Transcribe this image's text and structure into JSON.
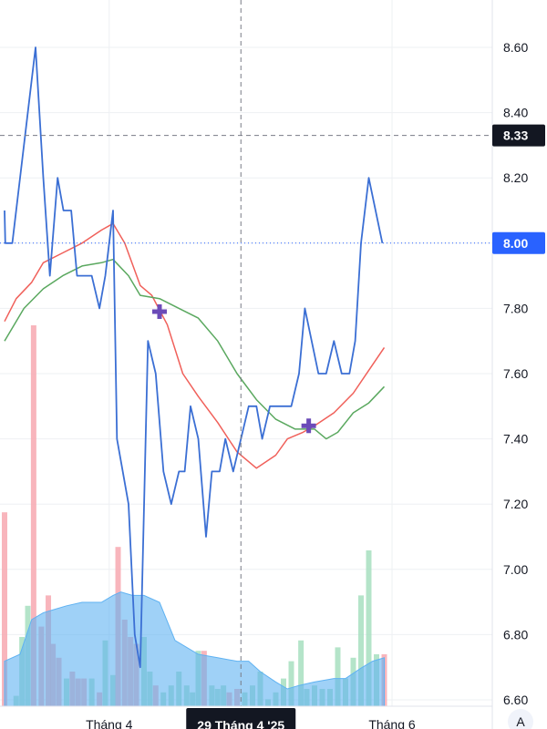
{
  "chart_data": {
    "type": "line",
    "y_axis": {
      "position": "right",
      "range": [
        6.6,
        8.66
      ],
      "ticks": [
        "8.60",
        "8.40",
        "8.20",
        "8.00",
        "7.80",
        "7.60",
        "7.40",
        "7.20",
        "7.00",
        "6.80",
        "6.60"
      ]
    },
    "x_axis": {
      "ticks": [
        {
          "label": "Tháng 4",
          "t": 0.27
        },
        {
          "label": "Tháng 6",
          "t": 1.0
        }
      ],
      "crosshair_label": "29 Tháng 4 '25",
      "crosshair_t": 0.61
    },
    "price_labels": [
      {
        "value": "8.33",
        "style": "dark"
      },
      {
        "value": "8.00",
        "style": "blue"
      }
    ],
    "crosshair_price": 8.33,
    "last_price": 8.0,
    "corner_button": "A",
    "series": [
      {
        "kind": "price",
        "color": "#3b6fd4",
        "points": [
          [
            0,
            8.1
          ],
          [
            0.002,
            8.0
          ],
          [
            0.02,
            8.0
          ],
          [
            0.04,
            8.2
          ],
          [
            0.08,
            8.6
          ],
          [
            0.1,
            8.2
          ],
          [
            0.117,
            7.9
          ],
          [
            0.137,
            8.2
          ],
          [
            0.152,
            8.1
          ],
          [
            0.172,
            8.1
          ],
          [
            0.187,
            7.9
          ],
          [
            0.225,
            7.9
          ],
          [
            0.245,
            7.8
          ],
          [
            0.26,
            7.9
          ],
          [
            0.28,
            8.1
          ],
          [
            0.29,
            7.4
          ],
          [
            0.32,
            7.2
          ],
          [
            0.336,
            6.8
          ],
          [
            0.35,
            6.7
          ],
          [
            0.37,
            7.7
          ],
          [
            0.39,
            7.6
          ],
          [
            0.41,
            7.3
          ],
          [
            0.43,
            7.2
          ],
          [
            0.45,
            7.3
          ],
          [
            0.465,
            7.3
          ],
          [
            0.48,
            7.5
          ],
          [
            0.5,
            7.4
          ],
          [
            0.52,
            7.1
          ],
          [
            0.535,
            7.3
          ],
          [
            0.555,
            7.3
          ],
          [
            0.57,
            7.4
          ],
          [
            0.59,
            7.3
          ],
          [
            0.61,
            7.4
          ],
          [
            0.63,
            7.5
          ],
          [
            0.65,
            7.5
          ],
          [
            0.665,
            7.4
          ],
          [
            0.685,
            7.5
          ],
          [
            0.7,
            7.5
          ],
          [
            0.74,
            7.5
          ],
          [
            0.76,
            7.6
          ],
          [
            0.775,
            7.8
          ],
          [
            0.81,
            7.6
          ],
          [
            0.83,
            7.6
          ],
          [
            0.85,
            7.7
          ],
          [
            0.87,
            7.6
          ],
          [
            0.89,
            7.6
          ],
          [
            0.905,
            7.7
          ],
          [
            0.92,
            8.0
          ],
          [
            0.94,
            8.2
          ],
          [
            0.975,
            8.0
          ]
        ]
      },
      {
        "kind": "ma",
        "color": "#f0605a",
        "points": [
          [
            0,
            7.76
          ],
          [
            0.03,
            7.83
          ],
          [
            0.07,
            7.88
          ],
          [
            0.1,
            7.94
          ],
          [
            0.15,
            7.97
          ],
          [
            0.2,
            8.0
          ],
          [
            0.25,
            8.04
          ],
          [
            0.28,
            8.06
          ],
          [
            0.31,
            8.0
          ],
          [
            0.35,
            7.87
          ],
          [
            0.38,
            7.84
          ],
          [
            0.42,
            7.75
          ],
          [
            0.46,
            7.6
          ],
          [
            0.5,
            7.53
          ],
          [
            0.55,
            7.45
          ],
          [
            0.6,
            7.36
          ],
          [
            0.65,
            7.31
          ],
          [
            0.7,
            7.35
          ],
          [
            0.73,
            7.4
          ],
          [
            0.77,
            7.42
          ],
          [
            0.8,
            7.44
          ],
          [
            0.85,
            7.48
          ],
          [
            0.9,
            7.54
          ],
          [
            0.94,
            7.61
          ],
          [
            0.98,
            7.68
          ]
        ]
      },
      {
        "kind": "ma",
        "color": "#5aa85f",
        "points": [
          [
            0,
            7.7
          ],
          [
            0.05,
            7.8
          ],
          [
            0.1,
            7.86
          ],
          [
            0.15,
            7.9
          ],
          [
            0.2,
            7.93
          ],
          [
            0.25,
            7.94
          ],
          [
            0.28,
            7.95
          ],
          [
            0.32,
            7.9
          ],
          [
            0.35,
            7.84
          ],
          [
            0.4,
            7.83
          ],
          [
            0.45,
            7.8
          ],
          [
            0.5,
            7.77
          ],
          [
            0.55,
            7.7
          ],
          [
            0.6,
            7.6
          ],
          [
            0.65,
            7.52
          ],
          [
            0.7,
            7.46
          ],
          [
            0.75,
            7.43
          ],
          [
            0.8,
            7.43
          ],
          [
            0.83,
            7.4
          ],
          [
            0.86,
            7.42
          ],
          [
            0.9,
            7.48
          ],
          [
            0.94,
            7.51
          ],
          [
            0.98,
            7.56
          ]
        ]
      }
    ],
    "markers": [
      {
        "t": 0.4,
        "value": 7.79,
        "shape": "cross",
        "color": "#6b4bb8"
      },
      {
        "t": 0.785,
        "value": 7.44,
        "shape": "cross",
        "color": "#6b4bb8"
      }
    ],
    "volume": {
      "max": 100,
      "up_color": "#a7dfc0",
      "down_color": "#f7a8b0",
      "bars": [
        [
          0.0,
          56,
          "down"
        ],
        [
          0.03,
          3,
          "up"
        ],
        [
          0.045,
          20,
          "up"
        ],
        [
          0.06,
          29,
          "up"
        ],
        [
          0.075,
          110,
          "down"
        ],
        [
          0.095,
          23,
          "down"
        ],
        [
          0.113,
          32,
          "down"
        ],
        [
          0.125,
          18,
          "down"
        ],
        [
          0.14,
          14,
          "down"
        ],
        [
          0.16,
          8,
          "up"
        ],
        [
          0.175,
          10,
          "down"
        ],
        [
          0.19,
          8,
          "down"
        ],
        [
          0.205,
          8,
          "down"
        ],
        [
          0.225,
          8,
          "up"
        ],
        [
          0.245,
          4,
          "down"
        ],
        [
          0.26,
          19,
          "up"
        ],
        [
          0.28,
          9,
          "up"
        ],
        [
          0.293,
          46,
          "down"
        ],
        [
          0.31,
          25,
          "down"
        ],
        [
          0.325,
          20,
          "down"
        ],
        [
          0.34,
          18,
          "down"
        ],
        [
          0.36,
          20,
          "up"
        ],
        [
          0.375,
          10,
          "up"
        ],
        [
          0.39,
          6,
          "down"
        ],
        [
          0.41,
          4,
          "up"
        ],
        [
          0.43,
          6,
          "up"
        ],
        [
          0.45,
          10,
          "up"
        ],
        [
          0.47,
          6,
          "up"
        ],
        [
          0.485,
          4,
          "up"
        ],
        [
          0.5,
          16,
          "up"
        ],
        [
          0.515,
          16,
          "down"
        ],
        [
          0.535,
          6,
          "up"
        ],
        [
          0.55,
          5,
          "up"
        ],
        [
          0.565,
          6,
          "up"
        ],
        [
          0.58,
          4,
          "down"
        ],
        [
          0.6,
          5,
          "down"
        ],
        [
          0.62,
          4,
          "up"
        ],
        [
          0.64,
          6,
          "up"
        ],
        [
          0.66,
          10,
          "up"
        ],
        [
          0.68,
          2,
          "up"
        ],
        [
          0.7,
          4,
          "up"
        ],
        [
          0.72,
          8,
          "up"
        ],
        [
          0.74,
          13,
          "up"
        ],
        [
          0.765,
          19,
          "up"
        ],
        [
          0.78,
          5,
          "up"
        ],
        [
          0.8,
          6,
          "up"
        ],
        [
          0.82,
          5,
          "up"
        ],
        [
          0.84,
          5,
          "up"
        ],
        [
          0.86,
          17,
          "up"
        ],
        [
          0.88,
          8,
          "up"
        ],
        [
          0.9,
          14,
          "up"
        ],
        [
          0.92,
          32,
          "up"
        ],
        [
          0.94,
          45,
          "up"
        ],
        [
          0.96,
          15,
          "up"
        ],
        [
          0.98,
          15,
          "down"
        ]
      ],
      "area": [
        [
          0,
          13
        ],
        [
          0.04,
          15
        ],
        [
          0.07,
          25
        ],
        [
          0.1,
          27
        ],
        [
          0.13,
          28
        ],
        [
          0.16,
          29
        ],
        [
          0.2,
          30
        ],
        [
          0.25,
          30
        ],
        [
          0.28,
          32
        ],
        [
          0.3,
          33
        ],
        [
          0.33,
          32
        ],
        [
          0.36,
          32
        ],
        [
          0.4,
          30
        ],
        [
          0.44,
          19
        ],
        [
          0.5,
          15
        ],
        [
          0.55,
          14
        ],
        [
          0.6,
          13
        ],
        [
          0.63,
          13
        ],
        [
          0.66,
          10
        ],
        [
          0.7,
          7
        ],
        [
          0.73,
          5
        ],
        [
          0.76,
          6
        ],
        [
          0.8,
          7
        ],
        [
          0.85,
          8
        ],
        [
          0.88,
          8
        ],
        [
          0.92,
          11
        ],
        [
          0.95,
          13
        ],
        [
          0.98,
          14
        ]
      ]
    }
  }
}
